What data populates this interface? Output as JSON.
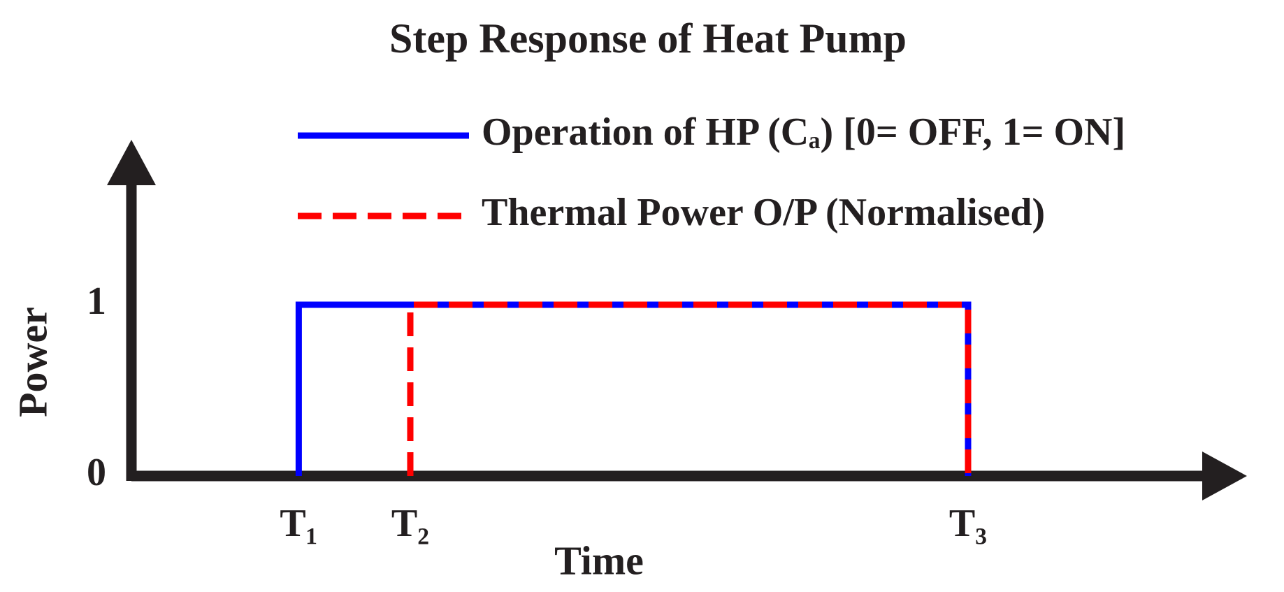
{
  "chart_data": {
    "type": "step",
    "title": "Step Response of Heat Pump",
    "x_label": "Time",
    "y_label": "Power",
    "xlim": [
      0,
      100
    ],
    "xticks": [
      {
        "value": 15,
        "label": "T₁"
      },
      {
        "value": 25,
        "label": "T₂"
      },
      {
        "value": 75,
        "label": "T₃"
      }
    ],
    "ylim": [
      0,
      2
    ],
    "yticks": [
      0,
      1
    ],
    "grid": false,
    "legend": "top",
    "series": [
      {
        "name": "Operation of HP (Cₐ)  [0= OFF, 1= ON]",
        "color": "#0000ff",
        "style": "solid",
        "x": [
          15,
          15,
          75,
          75
        ],
        "values": [
          0,
          1,
          1,
          0
        ]
      },
      {
        "name": "Thermal Power O/P (Normalised)",
        "color": "#ff0000",
        "style": "dashed",
        "x": [
          25,
          25,
          75,
          75
        ],
        "values": [
          0,
          1,
          1,
          0
        ]
      }
    ]
  }
}
